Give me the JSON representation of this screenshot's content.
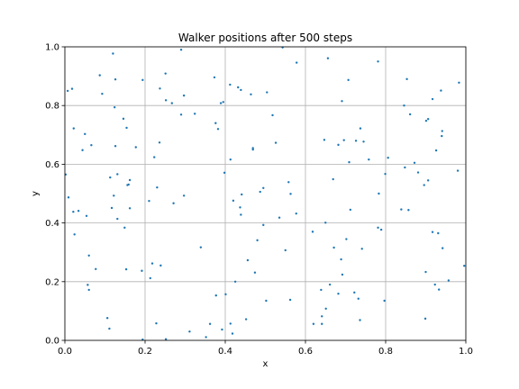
{
  "chart_data": {
    "type": "scatter",
    "title": "Walker positions after 500 steps",
    "xlabel": "x",
    "ylabel": "y",
    "xlim": [
      0.0,
      1.0
    ],
    "ylim": [
      0.0,
      1.0
    ],
    "xticks": [
      "0.0",
      "0.2",
      "0.4",
      "0.6",
      "0.8",
      "1.0"
    ],
    "yticks": [
      "0.0",
      "0.2",
      "0.4",
      "0.6",
      "0.8",
      "1.0"
    ],
    "grid": true,
    "legend": "none",
    "marker_color": "#1f77b4",
    "axes_color": "#000000",
    "grid_color": "#b0b0b0",
    "series": [
      {
        "points": [
          [
            0.007,
            0.85
          ],
          [
            0.018,
            0.857
          ],
          [
            0.002,
            0.565
          ],
          [
            0.009,
            0.487
          ],
          [
            0.022,
            0.722
          ],
          [
            0.021,
            0.438
          ],
          [
            0.034,
            0.441
          ],
          [
            0.044,
            0.648
          ],
          [
            0.05,
            0.703
          ],
          [
            0.054,
            0.424
          ],
          [
            0.024,
            0.361
          ],
          [
            0.06,
            0.289
          ],
          [
            0.057,
            0.189
          ],
          [
            0.06,
            0.172
          ],
          [
            0.066,
            0.665
          ],
          [
            0.077,
            0.243
          ],
          [
            0.087,
            0.903
          ],
          [
            0.093,
            0.84
          ],
          [
            0.106,
            0.076
          ],
          [
            0.111,
            0.04
          ],
          [
            0.113,
            0.555
          ],
          [
            0.12,
            0.977
          ],
          [
            0.117,
            0.451
          ],
          [
            0.122,
            0.493
          ],
          [
            0.124,
            0.794
          ],
          [
            0.126,
            0.889
          ],
          [
            0.126,
            0.662
          ],
          [
            0.131,
            0.566
          ],
          [
            0.131,
            0.414
          ],
          [
            0.146,
            0.755
          ],
          [
            0.149,
            0.384
          ],
          [
            0.153,
            0.242
          ],
          [
            0.154,
            0.724
          ],
          [
            0.156,
            0.529
          ],
          [
            0.159,
            0.531
          ],
          [
            0.162,
            0.546
          ],
          [
            0.162,
            0.45
          ],
          [
            0.177,
            0.658
          ],
          [
            0.192,
            0.237
          ],
          [
            0.194,
            0.003
          ],
          [
            0.194,
            0.887
          ],
          [
            0.21,
            0.475
          ],
          [
            0.213,
            0.212
          ],
          [
            0.218,
            0.262
          ],
          [
            0.223,
            0.624
          ],
          [
            0.228,
            0.058
          ],
          [
            0.23,
            0.521
          ],
          [
            0.237,
            0.858
          ],
          [
            0.236,
            0.674
          ],
          [
            0.239,
            0.255
          ],
          [
            0.251,
            0.909
          ],
          [
            0.252,
            0.818
          ],
          [
            0.252,
            0.004
          ],
          [
            0.267,
            0.808
          ],
          [
            0.271,
            0.467
          ],
          [
            0.29,
            0.99
          ],
          [
            0.29,
            0.769
          ],
          [
            0.297,
            0.834
          ],
          [
            0.297,
            0.493
          ],
          [
            0.311,
            0.03
          ],
          [
            0.324,
            0.772
          ],
          [
            0.339,
            0.317
          ],
          [
            0.352,
            0.011
          ],
          [
            0.362,
            0.056
          ],
          [
            0.373,
            0.896
          ],
          [
            0.376,
            0.74
          ],
          [
            0.377,
            0.153
          ],
          [
            0.382,
            0.72
          ],
          [
            0.389,
            0.808
          ],
          [
            0.392,
            0.037
          ],
          [
            0.395,
            0.812
          ],
          [
            0.398,
            0.571
          ],
          [
            0.401,
            0.157
          ],
          [
            0.412,
            0.871
          ],
          [
            0.413,
            0.616
          ],
          [
            0.413,
            0.057
          ],
          [
            0.418,
            0.023
          ],
          [
            0.42,
            0.476
          ],
          [
            0.425,
            0.2
          ],
          [
            0.432,
            0.862
          ],
          [
            0.437,
            0.453
          ],
          [
            0.439,
            0.853
          ],
          [
            0.439,
            0.428
          ],
          [
            0.441,
            0.497
          ],
          [
            0.452,
            0.072
          ],
          [
            0.456,
            0.273
          ],
          [
            0.464,
            0.838
          ],
          [
            0.469,
            0.65
          ],
          [
            0.469,
            0.655
          ],
          [
            0.474,
            0.231
          ],
          [
            0.48,
            0.341
          ],
          [
            0.487,
            0.506
          ],
          [
            0.495,
            0.393
          ],
          [
            0.495,
            0.519
          ],
          [
            0.502,
            0.135
          ],
          [
            0.504,
            0.845
          ],
          [
            0.518,
            0.767
          ],
          [
            0.526,
            0.673
          ],
          [
            0.535,
            0.418
          ],
          [
            0.543,
            0.998
          ],
          [
            0.55,
            0.307
          ],
          [
            0.558,
            0.539
          ],
          [
            0.562,
            0.138
          ],
          [
            0.563,
            0.499
          ],
          [
            0.577,
            0.432
          ],
          [
            0.578,
            0.946
          ],
          [
            0.618,
            0.37
          ],
          [
            0.62,
            0.056
          ],
          [
            0.639,
            0.172
          ],
          [
            0.641,
            0.056
          ],
          [
            0.641,
            0.082
          ],
          [
            0.647,
            0.683
          ],
          [
            0.65,
            0.401
          ],
          [
            0.651,
            0.108
          ],
          [
            0.656,
            0.961
          ],
          [
            0.661,
            0.19
          ],
          [
            0.669,
            0.549
          ],
          [
            0.671,
            0.316
          ],
          [
            0.682,
            0.666
          ],
          [
            0.682,
            0.159
          ],
          [
            0.689,
            0.276
          ],
          [
            0.691,
            0.815
          ],
          [
            0.692,
            0.224
          ],
          [
            0.696,
            0.682
          ],
          [
            0.702,
            0.345
          ],
          [
            0.707,
            0.887
          ],
          [
            0.709,
            0.607
          ],
          [
            0.712,
            0.445
          ],
          [
            0.722,
            0.163
          ],
          [
            0.726,
            0.68
          ],
          [
            0.732,
            0.142
          ],
          [
            0.736,
            0.069
          ],
          [
            0.737,
            0.722
          ],
          [
            0.741,
            0.312
          ],
          [
            0.745,
            0.677
          ],
          [
            0.758,
            0.616
          ],
          [
            0.781,
            0.95
          ],
          [
            0.781,
            0.384
          ],
          [
            0.783,
            0.5
          ],
          [
            0.789,
            0.377
          ],
          [
            0.797,
            0.135
          ],
          [
            0.799,
            0.567
          ],
          [
            0.806,
            0.622
          ],
          [
            0.839,
            0.446
          ],
          [
            0.846,
            0.8
          ],
          [
            0.848,
            0.589
          ],
          [
            0.853,
            0.89
          ],
          [
            0.857,
            0.444
          ],
          [
            0.861,
            0.77
          ],
          [
            0.872,
            0.605
          ],
          [
            0.881,
            0.572
          ],
          [
            0.896,
            0.529
          ],
          [
            0.901,
            0.748
          ],
          [
            0.906,
            0.754
          ],
          [
            0.906,
            0.545
          ],
          [
            0.9,
            0.233
          ],
          [
            0.899,
            0.074
          ],
          [
            0.917,
            0.822
          ],
          [
            0.917,
            0.369
          ],
          [
            0.923,
            0.19
          ],
          [
            0.926,
            0.647
          ],
          [
            0.931,
            0.365
          ],
          [
            0.933,
            0.173
          ],
          [
            0.938,
            0.851
          ],
          [
            0.94,
            0.696
          ],
          [
            0.941,
            0.713
          ],
          [
            0.942,
            0.314
          ],
          [
            0.957,
            0.204
          ],
          [
            0.98,
            0.578
          ],
          [
            0.983,
            0.878
          ],
          [
            0.996,
            0.254
          ]
        ]
      }
    ]
  }
}
